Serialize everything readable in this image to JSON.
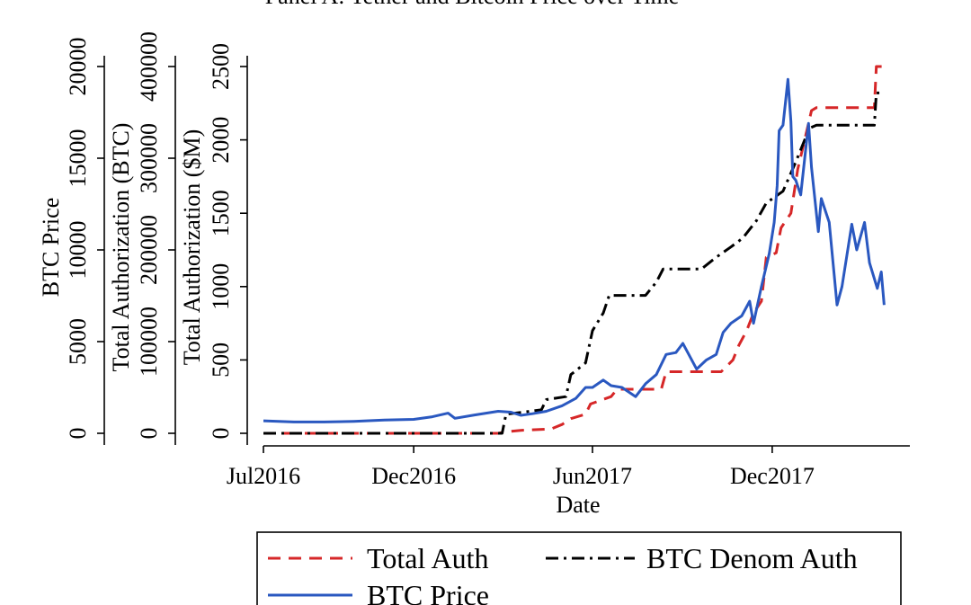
{
  "chart_data": {
    "type": "line",
    "title": "Panel A: Tether and Bitcoin Price over Time",
    "xlabel": "Date",
    "x_ticks": [
      "Jul2016",
      "Dec2016",
      "Jun2017",
      "Dec2017"
    ],
    "xlim": [
      "2016-07-01",
      "2018-03-31"
    ],
    "y_axes": [
      {
        "label": "BTC Price",
        "ticks": [
          "0",
          "5000",
          "10000",
          "15000",
          "20000"
        ],
        "ylim": [
          0,
          20000
        ]
      },
      {
        "label": "Total Authorization (BTC)",
        "ticks": [
          "0",
          "100000",
          "200000",
          "300000",
          "400000"
        ],
        "ylim": [
          0,
          400000
        ]
      },
      {
        "label": "Total Authorization ($M)",
        "ticks": [
          "0",
          "500",
          "1000",
          "1500",
          "2000",
          "2500"
        ],
        "ylim": [
          0,
          2500
        ]
      }
    ],
    "legend": {
      "placement": "bottom",
      "entries": [
        "Total Auth",
        "BTC Denom Auth",
        "BTC Price"
      ]
    },
    "series": [
      {
        "name": "Total Auth",
        "axis": "Total Authorization ($M)",
        "color": "#d62728",
        "style": "dashed",
        "points": [
          [
            "2016-07-01",
            0
          ],
          [
            "2016-10-15",
            0
          ],
          [
            "2017-02-25",
            0
          ],
          [
            "2017-03-05",
            10
          ],
          [
            "2017-03-20",
            20
          ],
          [
            "2017-04-20",
            30
          ],
          [
            "2017-05-01",
            60
          ],
          [
            "2017-05-10",
            100
          ],
          [
            "2017-05-25",
            130
          ],
          [
            "2017-05-30",
            200
          ],
          [
            "2017-06-20",
            250
          ],
          [
            "2017-06-26",
            300
          ],
          [
            "2017-08-10",
            300
          ],
          [
            "2017-08-15",
            420
          ],
          [
            "2017-10-10",
            420
          ],
          [
            "2017-10-22",
            500
          ],
          [
            "2017-10-28",
            600
          ],
          [
            "2017-11-05",
            700
          ],
          [
            "2017-11-12",
            820
          ],
          [
            "2017-11-20",
            900
          ],
          [
            "2017-11-25",
            1200
          ],
          [
            "2017-12-05",
            1230
          ],
          [
            "2017-12-10",
            1400
          ],
          [
            "2017-12-20",
            1500
          ],
          [
            "2017-12-27",
            1800
          ],
          [
            "2018-01-03",
            2000
          ],
          [
            "2018-01-10",
            2200
          ],
          [
            "2018-01-15",
            2220
          ],
          [
            "2018-03-15",
            2220
          ],
          [
            "2018-03-17",
            2500
          ],
          [
            "2018-03-25",
            2500
          ]
        ]
      },
      {
        "name": "BTC Denom Auth",
        "axis": "Total Authorization ($M)",
        "color": "#000000",
        "style": "dashdot",
        "points": [
          [
            "2016-07-01",
            0
          ],
          [
            "2017-03-01",
            0
          ],
          [
            "2017-03-05",
            130
          ],
          [
            "2017-04-10",
            160
          ],
          [
            "2017-04-15",
            230
          ],
          [
            "2017-05-05",
            250
          ],
          [
            "2017-05-10",
            400
          ],
          [
            "2017-05-25",
            480
          ],
          [
            "2017-06-01",
            700
          ],
          [
            "2017-06-12",
            820
          ],
          [
            "2017-06-18",
            940
          ],
          [
            "2017-07-25",
            940
          ],
          [
            "2017-08-05",
            1030
          ],
          [
            "2017-08-12",
            1120
          ],
          [
            "2017-09-20",
            1120
          ],
          [
            "2017-10-05",
            1200
          ],
          [
            "2017-10-20",
            1270
          ],
          [
            "2017-11-01",
            1330
          ],
          [
            "2017-11-15",
            1450
          ],
          [
            "2017-11-25",
            1570
          ],
          [
            "2017-12-12",
            1650
          ],
          [
            "2017-12-25",
            1850
          ],
          [
            "2018-01-08",
            2080
          ],
          [
            "2018-01-15",
            2100
          ],
          [
            "2018-03-15",
            2100
          ],
          [
            "2018-03-17",
            2320
          ],
          [
            "2018-03-25",
            2320
          ]
        ]
      },
      {
        "name": "BTC Price",
        "axis": "BTC Price",
        "color": "#2a58c0",
        "style": "solid",
        "points": [
          [
            "2016-07-01",
            680
          ],
          [
            "2016-08-01",
            620
          ],
          [
            "2016-09-01",
            620
          ],
          [
            "2016-10-01",
            650
          ],
          [
            "2016-11-01",
            720
          ],
          [
            "2016-12-01",
            760
          ],
          [
            "2016-12-20",
            900
          ],
          [
            "2017-01-05",
            1100
          ],
          [
            "2017-01-12",
            820
          ],
          [
            "2017-02-01",
            1000
          ],
          [
            "2017-02-25",
            1200
          ],
          [
            "2017-03-10",
            1150
          ],
          [
            "2017-03-20",
            980
          ],
          [
            "2017-04-01",
            1070
          ],
          [
            "2017-04-15",
            1200
          ],
          [
            "2017-05-01",
            1500
          ],
          [
            "2017-05-15",
            1900
          ],
          [
            "2017-05-25",
            2500
          ],
          [
            "2017-06-01",
            2500
          ],
          [
            "2017-06-12",
            2900
          ],
          [
            "2017-06-20",
            2600
          ],
          [
            "2017-07-01",
            2500
          ],
          [
            "2017-07-15",
            2000
          ],
          [
            "2017-07-25",
            2700
          ],
          [
            "2017-08-05",
            3200
          ],
          [
            "2017-08-15",
            4300
          ],
          [
            "2017-08-25",
            4400
          ],
          [
            "2017-09-01",
            4900
          ],
          [
            "2017-09-05",
            4500
          ],
          [
            "2017-09-15",
            3500
          ],
          [
            "2017-09-25",
            4000
          ],
          [
            "2017-10-05",
            4300
          ],
          [
            "2017-10-12",
            5500
          ],
          [
            "2017-10-20",
            6000
          ],
          [
            "2017-10-31",
            6400
          ],
          [
            "2017-11-08",
            7200
          ],
          [
            "2017-11-12",
            6000
          ],
          [
            "2017-11-20",
            8000
          ],
          [
            "2017-11-28",
            9800
          ],
          [
            "2017-12-03",
            11500
          ],
          [
            "2017-12-06",
            13500
          ],
          [
            "2017-12-08",
            16500
          ],
          [
            "2017-12-12",
            16800
          ],
          [
            "2017-12-17",
            19300
          ],
          [
            "2017-12-20",
            17000
          ],
          [
            "2017-12-22",
            14000
          ],
          [
            "2017-12-25",
            13800
          ],
          [
            "2017-12-30",
            13000
          ],
          [
            "2018-01-07",
            16900
          ],
          [
            "2018-01-10",
            14500
          ],
          [
            "2018-01-17",
            11000
          ],
          [
            "2018-01-20",
            12800
          ],
          [
            "2018-01-28",
            11500
          ],
          [
            "2018-02-05",
            7000
          ],
          [
            "2018-02-10",
            8000
          ],
          [
            "2018-02-20",
            11400
          ],
          [
            "2018-02-25",
            10000
          ],
          [
            "2018-03-05",
            11500
          ],
          [
            "2018-03-10",
            9300
          ],
          [
            "2018-03-18",
            7900
          ],
          [
            "2018-03-22",
            8800
          ],
          [
            "2018-03-25",
            7000
          ]
        ]
      }
    ]
  }
}
